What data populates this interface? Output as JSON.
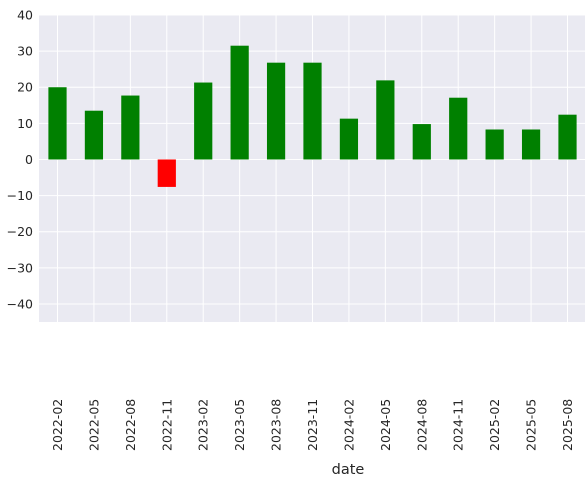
{
  "chart_data": {
    "type": "bar",
    "title": "",
    "xlabel": "date",
    "ylabel": "",
    "ylim": [
      -45,
      40
    ],
    "yticks": [
      40,
      30,
      20,
      10,
      0,
      -10,
      -20,
      -30,
      -40
    ],
    "grid": true,
    "categories": [
      "2022-02",
      "2022-05",
      "2022-08",
      "2022-11",
      "2023-02",
      "2023-05",
      "2023-08",
      "2023-11",
      "2024-02",
      "2024-05",
      "2024-08",
      "2024-11",
      "2025-02",
      "2025-05",
      "2025-08"
    ],
    "values": [
      20.0,
      13.5,
      17.7,
      -7.6,
      21.3,
      31.5,
      26.8,
      26.8,
      11.3,
      21.9,
      9.8,
      17.1,
      8.3,
      8.3,
      12.4
    ],
    "positive_color": "#008000",
    "negative_color": "#ff0000",
    "background_color": "#eaeaf2",
    "grid_color": "#ffffff"
  }
}
